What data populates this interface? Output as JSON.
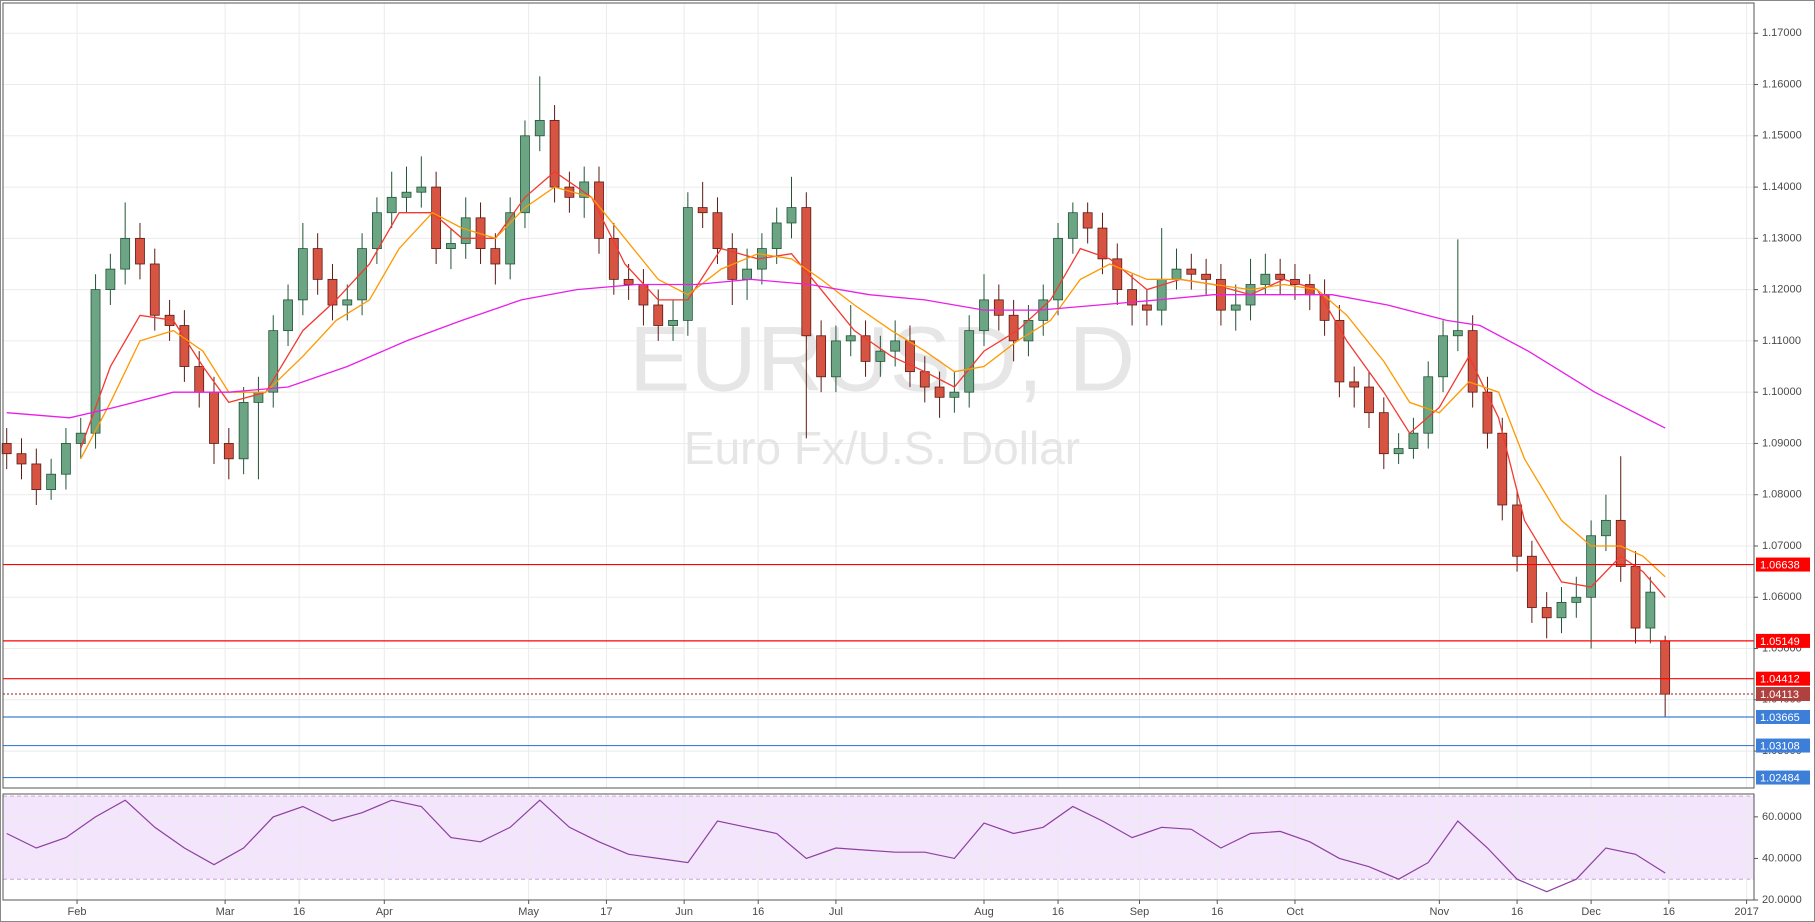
{
  "chart_data": [
    {
      "type": "candlestick",
      "title": "EURUSD, D",
      "subtitle": "Euro Fx/U.S. Dollar",
      "x": [
        0,
        2,
        4,
        6,
        8,
        10,
        12,
        14,
        16,
        18,
        20,
        22,
        24,
        26,
        28,
        30,
        32,
        34,
        36,
        38,
        40,
        42,
        44,
        46,
        48,
        50,
        52,
        54,
        56,
        58,
        60,
        62,
        64,
        66,
        68,
        70,
        72,
        74,
        76,
        78,
        80,
        82,
        84,
        86,
        88,
        90,
        92,
        94,
        96,
        98,
        100,
        102,
        104,
        106,
        108,
        110,
        112,
        114,
        116,
        118,
        120,
        122,
        124,
        126,
        128,
        130,
        132,
        134,
        136,
        138,
        140,
        142,
        144,
        146,
        148,
        150,
        152,
        154,
        156,
        158,
        160,
        162,
        164,
        166,
        168,
        170,
        172,
        174,
        176,
        178,
        180,
        182,
        184,
        186,
        188,
        190,
        192,
        194,
        196,
        198,
        200,
        202,
        204,
        206,
        208,
        210,
        212,
        214,
        216,
        218,
        220,
        222,
        224
      ],
      "open": [
        1.09,
        1.088,
        1.086,
        1.081,
        1.084,
        1.09,
        1.092,
        1.12,
        1.124,
        1.13,
        1.125,
        1.115,
        1.113,
        1.105,
        1.1,
        1.09,
        1.087,
        1.098,
        1.1,
        1.112,
        1.118,
        1.128,
        1.122,
        1.117,
        1.118,
        1.128,
        1.135,
        1.138,
        1.139,
        1.14,
        1.128,
        1.129,
        1.134,
        1.128,
        1.125,
        1.135,
        1.15,
        1.153,
        1.14,
        1.138,
        1.141,
        1.13,
        1.122,
        1.121,
        1.117,
        1.113,
        1.114,
        1.136,
        1.135,
        1.128,
        1.122,
        1.124,
        1.128,
        1.133,
        1.136,
        1.111,
        1.103,
        1.11,
        1.111,
        1.106,
        1.108,
        1.11,
        1.104,
        1.101,
        1.099,
        1.1,
        1.112,
        1.118,
        1.115,
        1.11,
        1.114,
        1.118,
        1.13,
        1.135,
        1.132,
        1.126,
        1.12,
        1.117,
        1.116,
        1.122,
        1.124,
        1.123,
        1.122,
        1.116,
        1.117,
        1.121,
        1.123,
        1.122,
        1.121,
        1.119,
        1.114,
        1.102,
        1.101,
        1.096,
        1.088,
        1.089,
        1.092,
        1.103,
        1.111,
        1.112,
        1.1,
        1.092,
        1.078,
        1.068,
        1.058,
        1.056,
        1.059,
        1.06,
        1.072,
        1.075,
        1.066,
        1.054,
        1.0515
      ],
      "high": [
        1.093,
        1.091,
        1.089,
        1.087,
        1.093,
        1.095,
        1.123,
        1.127,
        1.137,
        1.133,
        1.128,
        1.118,
        1.116,
        1.108,
        1.103,
        1.093,
        1.101,
        1.103,
        1.115,
        1.121,
        1.133,
        1.131,
        1.125,
        1.121,
        1.131,
        1.138,
        1.143,
        1.144,
        1.146,
        1.143,
        1.132,
        1.138,
        1.137,
        1.131,
        1.138,
        1.153,
        1.1616,
        1.156,
        1.143,
        1.144,
        1.144,
        1.133,
        1.125,
        1.124,
        1.12,
        1.118,
        1.139,
        1.141,
        1.138,
        1.131,
        1.128,
        1.131,
        1.136,
        1.142,
        1.139,
        1.114,
        1.113,
        1.117,
        1.114,
        1.111,
        1.114,
        1.113,
        1.107,
        1.104,
        1.104,
        1.115,
        1.123,
        1.121,
        1.118,
        1.117,
        1.121,
        1.133,
        1.137,
        1.137,
        1.135,
        1.129,
        1.123,
        1.12,
        1.132,
        1.128,
        1.127,
        1.126,
        1.125,
        1.121,
        1.126,
        1.127,
        1.126,
        1.125,
        1.123,
        1.122,
        1.117,
        1.105,
        1.104,
        1.099,
        1.092,
        1.095,
        1.106,
        1.114,
        1.1298,
        1.115,
        1.103,
        1.095,
        1.081,
        1.071,
        1.061,
        1.062,
        1.064,
        1.075,
        1.08,
        1.0875,
        1.069,
        1.064,
        1.0525
      ],
      "low": [
        1.085,
        1.083,
        1.078,
        1.079,
        1.081,
        1.087,
        1.089,
        1.117,
        1.121,
        1.122,
        1.112,
        1.11,
        1.102,
        1.097,
        1.086,
        1.083,
        1.084,
        1.083,
        1.097,
        1.109,
        1.115,
        1.119,
        1.114,
        1.114,
        1.115,
        1.125,
        1.132,
        1.135,
        1.136,
        1.125,
        1.124,
        1.126,
        1.125,
        1.121,
        1.122,
        1.132,
        1.147,
        1.137,
        1.135,
        1.134,
        1.127,
        1.119,
        1.118,
        1.113,
        1.11,
        1.11,
        1.111,
        1.132,
        1.125,
        1.117,
        1.118,
        1.121,
        1.125,
        1.13,
        1.091,
        1.1,
        1.1,
        1.107,
        1.103,
        1.103,
        1.105,
        1.101,
        1.098,
        1.095,
        1.096,
        1.097,
        1.109,
        1.112,
        1.106,
        1.107,
        1.111,
        1.115,
        1.127,
        1.129,
        1.123,
        1.117,
        1.113,
        1.113,
        1.113,
        1.12,
        1.12,
        1.119,
        1.113,
        1.112,
        1.114,
        1.119,
        1.119,
        1.118,
        1.116,
        1.111,
        1.099,
        1.097,
        1.093,
        1.085,
        1.086,
        1.087,
        1.089,
        1.1,
        1.108,
        1.097,
        1.089,
        1.075,
        1.065,
        1.055,
        1.052,
        1.053,
        1.056,
        1.05,
        1.069,
        1.063,
        1.051,
        1.051,
        1.0366
      ],
      "close": [
        1.088,
        1.086,
        1.081,
        1.084,
        1.09,
        1.092,
        1.12,
        1.124,
        1.13,
        1.125,
        1.115,
        1.113,
        1.105,
        1.1,
        1.09,
        1.087,
        1.098,
        1.1,
        1.112,
        1.118,
        1.128,
        1.122,
        1.117,
        1.118,
        1.128,
        1.135,
        1.138,
        1.139,
        1.14,
        1.128,
        1.129,
        1.134,
        1.128,
        1.125,
        1.135,
        1.15,
        1.153,
        1.14,
        1.138,
        1.141,
        1.13,
        1.122,
        1.121,
        1.117,
        1.113,
        1.114,
        1.136,
        1.135,
        1.128,
        1.122,
        1.124,
        1.128,
        1.133,
        1.136,
        1.111,
        1.103,
        1.11,
        1.111,
        1.106,
        1.108,
        1.11,
        1.104,
        1.101,
        1.099,
        1.1,
        1.112,
        1.118,
        1.115,
        1.11,
        1.114,
        1.118,
        1.13,
        1.135,
        1.132,
        1.126,
        1.12,
        1.117,
        1.116,
        1.122,
        1.124,
        1.123,
        1.122,
        1.116,
        1.117,
        1.121,
        1.123,
        1.122,
        1.121,
        1.119,
        1.114,
        1.102,
        1.101,
        1.096,
        1.088,
        1.089,
        1.092,
        1.103,
        1.111,
        1.112,
        1.1,
        1.092,
        1.078,
        1.068,
        1.058,
        1.056,
        1.059,
        1.06,
        1.072,
        1.075,
        1.066,
        1.054,
        1.061,
        1.0411
      ],
      "up_color": "#6ba583",
      "up_border": "#225437",
      "down_color": "#d75442",
      "down_border": "#5b1a13",
      "series": [
        {
          "color": "#f23a30",
          "x": [
            10,
            14,
            18,
            22.5,
            26.5,
            30,
            35,
            40,
            44.5,
            49,
            53,
            57.5,
            61.5,
            66,
            70,
            74,
            79,
            83.5,
            88,
            92,
            96.5,
            101.5,
            106,
            110,
            114.5,
            119.5,
            124,
            128,
            132,
            136.5,
            141,
            145,
            149,
            154,
            158.5,
            163,
            168,
            172.5,
            177,
            181,
            186,
            189.5,
            193.5,
            197.5,
            201.5,
            205,
            210,
            214,
            218,
            221,
            224
          ],
          "values": [
            1.089,
            1.105,
            1.115,
            1.114,
            1.105,
            1.098,
            1.1,
            1.112,
            1.118,
            1.125,
            1.135,
            1.135,
            1.13,
            1.13,
            1.138,
            1.143,
            1.138,
            1.125,
            1.118,
            1.118,
            1.128,
            1.126,
            1.127,
            1.12,
            1.112,
            1.107,
            1.104,
            1.101,
            1.108,
            1.112,
            1.118,
            1.128,
            1.126,
            1.12,
            1.122,
            1.121,
            1.119,
            1.122,
            1.12,
            1.11,
            1.1,
            1.092,
            1.097,
            1.107,
            1.095,
            1.075,
            1.063,
            1.062,
            1.068,
            1.065,
            1.06
          ]
        },
        {
          "color": "#ff9800",
          "x": [
            10,
            14,
            18,
            22.5,
            26.5,
            30,
            35,
            40,
            44.5,
            49,
            53,
            57.5,
            61.5,
            66,
            70,
            74,
            79,
            83.5,
            88,
            92,
            96.5,
            101.5,
            106,
            110,
            114.5,
            119.5,
            124,
            128,
            132,
            136.5,
            141,
            145,
            149,
            154,
            158.5,
            163,
            168,
            172.5,
            177,
            181,
            186,
            189.5,
            193.5,
            197.5,
            201.5,
            205,
            210,
            214,
            218,
            221,
            224
          ],
          "values": [
            1.087,
            1.098,
            1.11,
            1.112,
            1.108,
            1.1,
            1.1,
            1.107,
            1.114,
            1.118,
            1.128,
            1.135,
            1.132,
            1.13,
            1.136,
            1.14,
            1.138,
            1.13,
            1.122,
            1.119,
            1.124,
            1.127,
            1.126,
            1.122,
            1.117,
            1.112,
            1.108,
            1.104,
            1.105,
            1.11,
            1.114,
            1.122,
            1.125,
            1.122,
            1.122,
            1.121,
            1.12,
            1.121,
            1.12,
            1.115,
            1.106,
            1.098,
            1.096,
            1.102,
            1.1,
            1.087,
            1.075,
            1.07,
            1.07,
            1.068,
            1.064
          ]
        },
        {
          "color": "#e91ee9",
          "x": [
            0,
            8.5,
            14.5,
            22.5,
            30,
            38,
            46,
            54,
            61.5,
            69.5,
            77,
            85,
            93,
            100.5,
            108.5,
            116.5,
            124,
            132,
            139.5,
            147.5,
            155.5,
            163,
            171,
            179,
            186.5,
            194.5,
            199,
            205.5,
            214.5,
            224
          ],
          "values": [
            1.096,
            1.095,
            1.097,
            1.1,
            1.1,
            1.101,
            1.105,
            1.11,
            1.114,
            1.118,
            1.12,
            1.121,
            1.121,
            1.122,
            1.121,
            1.119,
            1.118,
            1.116,
            1.116,
            1.117,
            1.118,
            1.119,
            1.119,
            1.119,
            1.117,
            1.114,
            1.113,
            1.108,
            1.1,
            1.093
          ]
        }
      ],
      "levels": [
        {
          "value": 1.06638,
          "color": "#ff0000",
          "dashed": false
        },
        {
          "value": 1.05149,
          "color": "#ff0000",
          "dashed": false
        },
        {
          "value": 1.04412,
          "color": "#ff0000",
          "dashed": false
        },
        {
          "value": 1.04113,
          "color": "#b0413e",
          "dashed": true
        },
        {
          "value": 1.03665,
          "color": "#3d7fd8",
          "dashed": false
        },
        {
          "value": 1.03108,
          "color": "#3d7fd8",
          "dashed": false
        },
        {
          "value": 1.02484,
          "color": "#3d7fd8",
          "dashed": false
        }
      ],
      "xlim": [
        -0.5,
        236
      ],
      "xticks": [
        {
          "value": 9.5,
          "label": "Feb"
        },
        {
          "value": 29.5,
          "label": "Mar"
        },
        {
          "value": 39.5,
          "label": "16"
        },
        {
          "value": 51,
          "label": "Apr"
        },
        {
          "value": 70.5,
          "label": "May"
        },
        {
          "value": 81,
          "label": "17"
        },
        {
          "value": 91.5,
          "label": "Jun"
        },
        {
          "value": 101.5,
          "label": "16"
        },
        {
          "value": 112,
          "label": "Jul"
        },
        {
          "value": 132,
          "label": "Aug"
        },
        {
          "value": 142,
          "label": "16"
        },
        {
          "value": 153,
          "label": "Sep"
        },
        {
          "value": 163.5,
          "label": "16"
        },
        {
          "value": 174,
          "label": "Oct"
        },
        {
          "value": 193.5,
          "label": "Nov"
        },
        {
          "value": 204,
          "label": "16"
        },
        {
          "value": 214,
          "label": "Dec"
        },
        {
          "value": 224.5,
          "label": "16"
        },
        {
          "value": 235,
          "label": "2017"
        }
      ],
      "ylim": [
        1.0228,
        1.1759
      ],
      "yticks": [
        {
          "value": 1.03,
          "label": "1.03000"
        },
        {
          "value": 1.04,
          "label": "1.04000"
        },
        {
          "value": 1.05,
          "label": "1.05000"
        },
        {
          "value": 1.06,
          "label": "1.06000"
        },
        {
          "value": 1.07,
          "label": "1.07000"
        },
        {
          "value": 1.08,
          "label": "1.08000"
        },
        {
          "value": 1.09,
          "label": "1.09000"
        },
        {
          "value": 1.1,
          "label": "1.10000"
        },
        {
          "value": 1.11,
          "label": "1.11000"
        },
        {
          "value": 1.12,
          "label": "1.12000"
        },
        {
          "value": 1.13,
          "label": "1.13000"
        },
        {
          "value": 1.14,
          "label": "1.14000"
        },
        {
          "value": 1.15,
          "label": "1.15000"
        },
        {
          "value": 1.16,
          "label": "1.16000"
        },
        {
          "value": 1.17,
          "label": "1.17000"
        }
      ],
      "grid": true
    },
    {
      "type": "line",
      "color": "#8e3fa0",
      "x": [
        0,
        4,
        8,
        12,
        16,
        20,
        24,
        28,
        32,
        36,
        40,
        44,
        48,
        52,
        56,
        60,
        64,
        68,
        72,
        76,
        80,
        84,
        88,
        92,
        96,
        100,
        104,
        108,
        112,
        116,
        120,
        124,
        128,
        132,
        136,
        140,
        144,
        148,
        152,
        156,
        160,
        164,
        168,
        172,
        176,
        180,
        184,
        188,
        192,
        196,
        200,
        204,
        208,
        212,
        216,
        220,
        224
      ],
      "values": [
        52,
        45,
        50,
        60,
        68,
        55,
        45,
        37,
        45,
        60,
        65,
        58,
        62,
        68,
        65,
        50,
        48,
        55,
        68,
        55,
        48,
        42,
        40,
        38,
        58,
        55,
        52,
        40,
        45,
        44,
        43,
        43,
        40,
        57,
        52,
        55,
        65,
        58,
        50,
        55,
        54,
        45,
        52,
        53,
        48,
        40,
        36,
        30,
        38,
        58,
        45,
        30,
        24,
        30,
        45,
        42,
        33
      ],
      "xlim": [
        -0.5,
        236
      ],
      "ylim": [
        20,
        71
      ],
      "yticks": [
        {
          "value": 20,
          "label": "20.0000"
        },
        {
          "value": 40,
          "label": "40.0000"
        },
        {
          "value": 60,
          "label": "60.0000"
        }
      ],
      "band": [
        30,
        70
      ],
      "band_color": "#f3e5fb",
      "grid": true
    }
  ]
}
